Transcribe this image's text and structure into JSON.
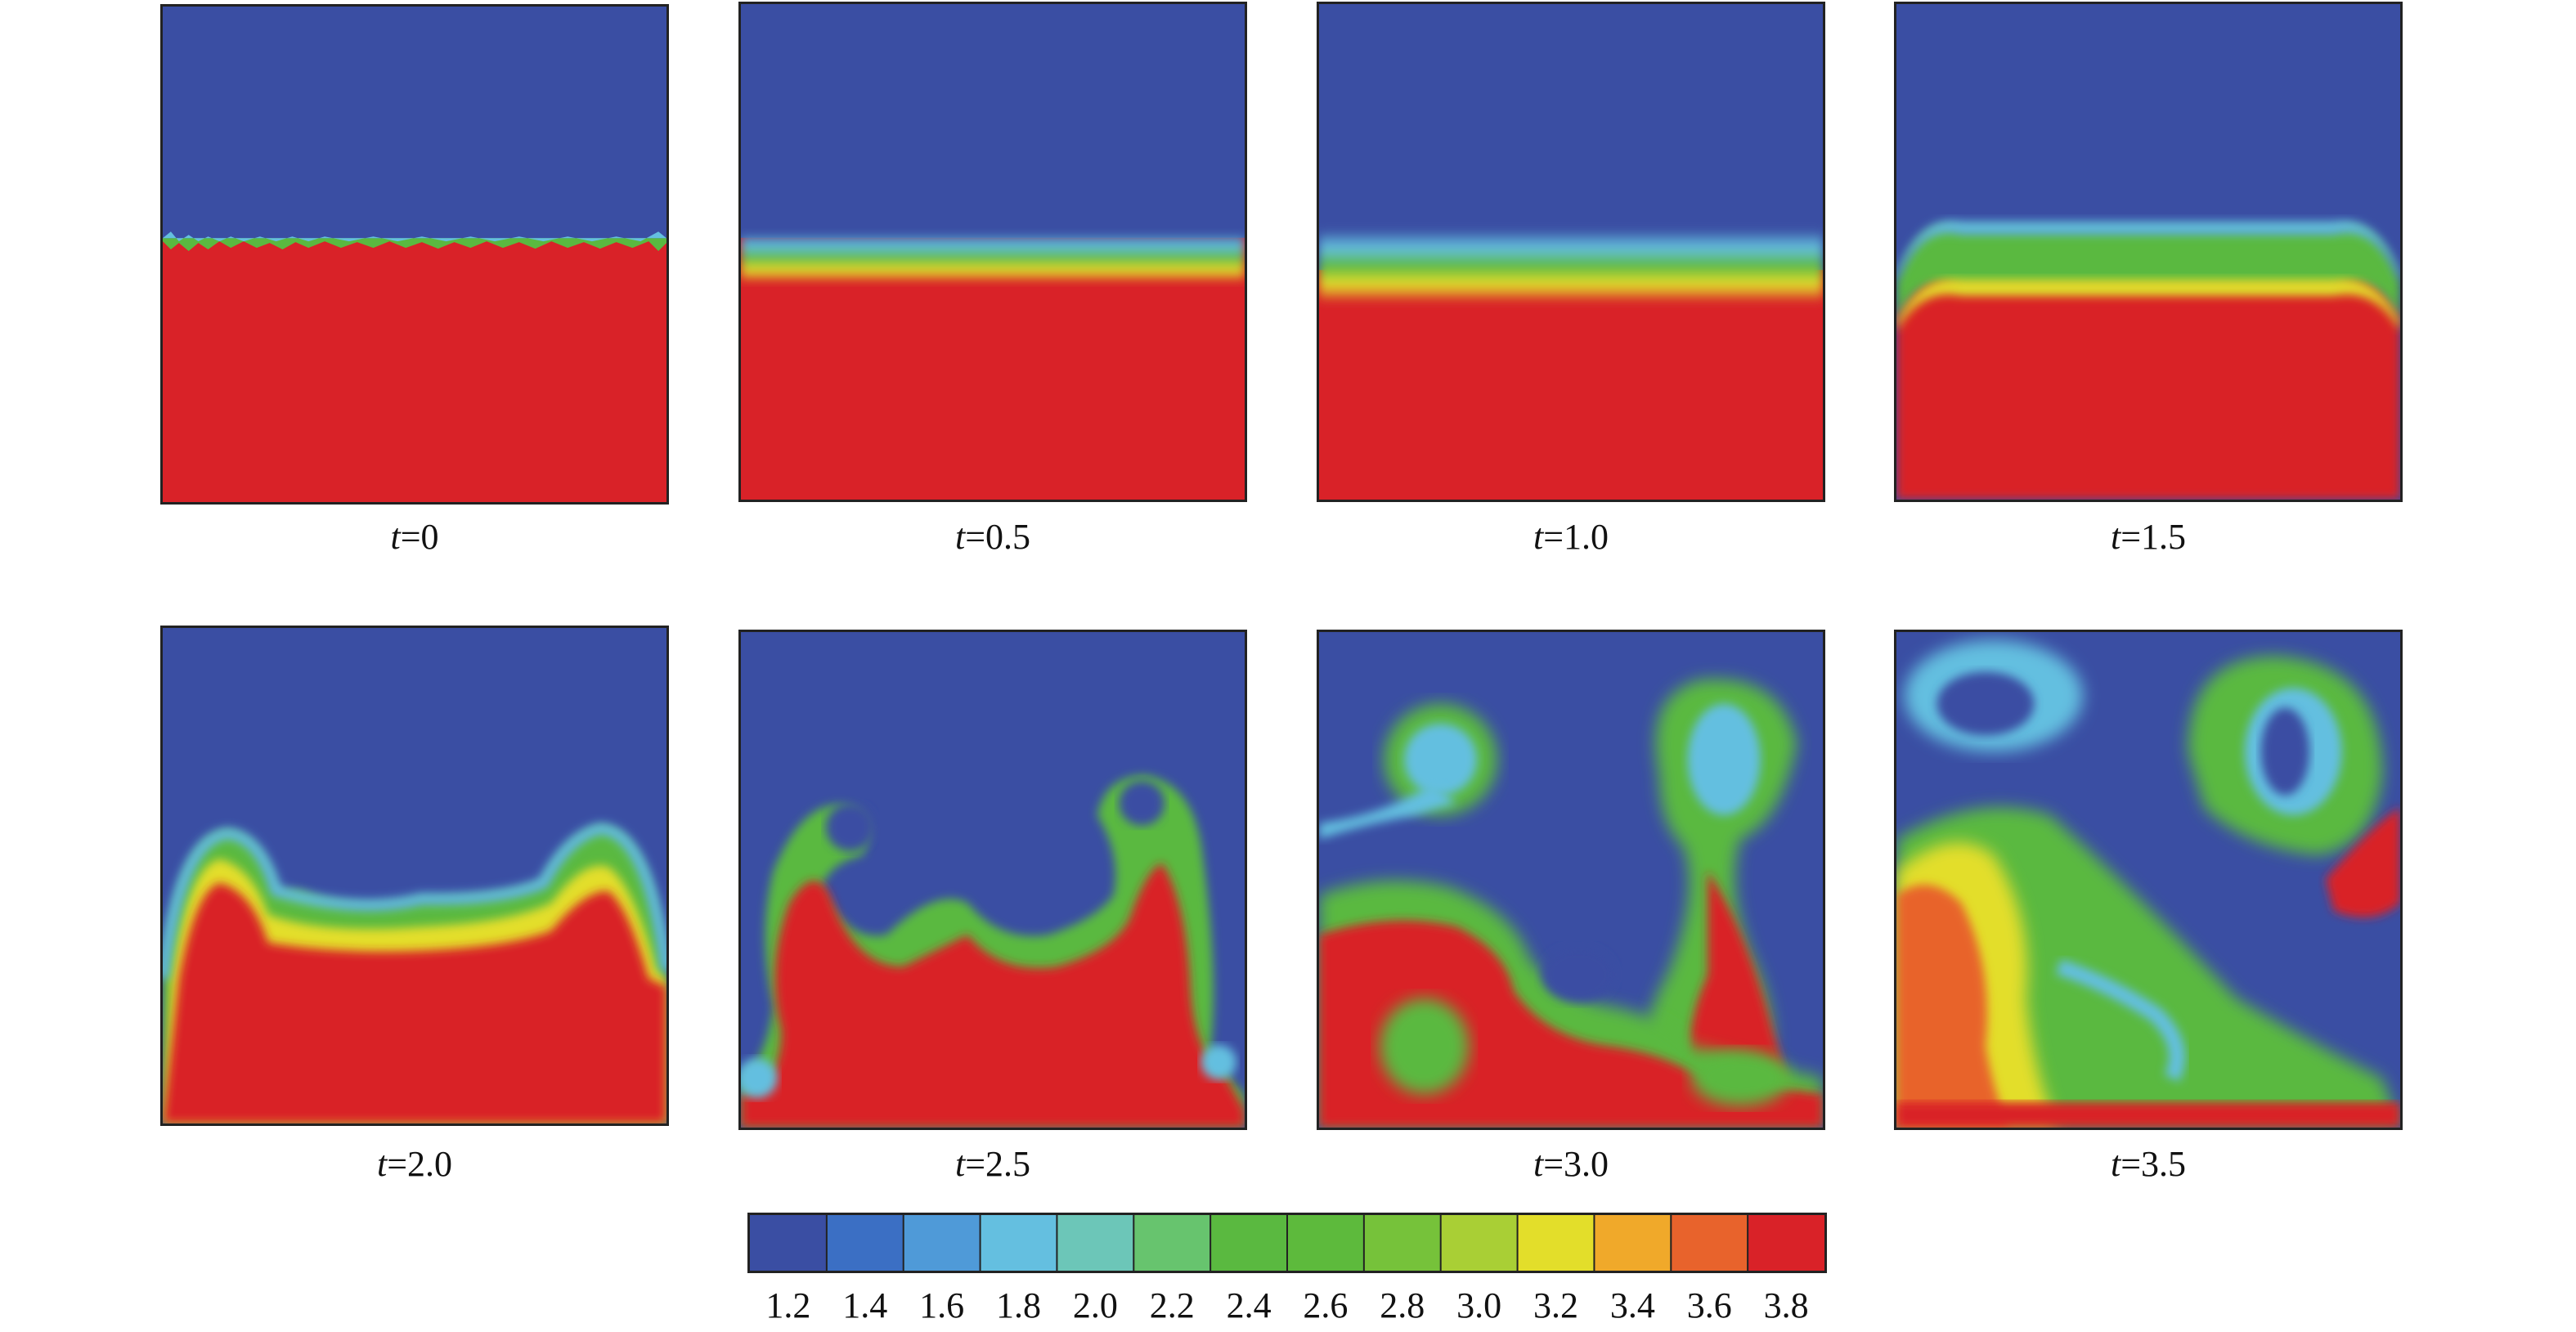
{
  "frames": [
    {
      "label": "t",
      "value": "=0"
    },
    {
      "label": "t",
      "value": "=0.5"
    },
    {
      "label": "t",
      "value": "=1.0"
    },
    {
      "label": "t",
      "value": "=1.5"
    },
    {
      "label": "t",
      "value": "=2.0"
    },
    {
      "label": "t",
      "value": "=2.5"
    },
    {
      "label": "t",
      "value": "=3.0"
    },
    {
      "label": "t",
      "value": "=3.5"
    }
  ],
  "colorbar": {
    "ticks": [
      "1.2",
      "1.4",
      "1.6",
      "1.8",
      "2.0",
      "2.2",
      "2.4",
      "2.6",
      "2.8",
      "3.0",
      "3.2",
      "3.4",
      "3.6",
      "3.8"
    ],
    "colors": [
      "#3a4ea3",
      "#3b6fc4",
      "#4f9ad8",
      "#64bfe0",
      "#6cc6b8",
      "#67c46e",
      "#5ab940",
      "#5dba3c",
      "#76c23a",
      "#a9cf35",
      "#e3de2a",
      "#f0a92a",
      "#e8632c",
      "#d92228"
    ]
  },
  "colors": {
    "light": "#3a4ea3",
    "heavy": "#d92228",
    "mix_low": "#64bfe0",
    "mix_mid": "#5ab940",
    "mix_high": "#e3de2a"
  }
}
